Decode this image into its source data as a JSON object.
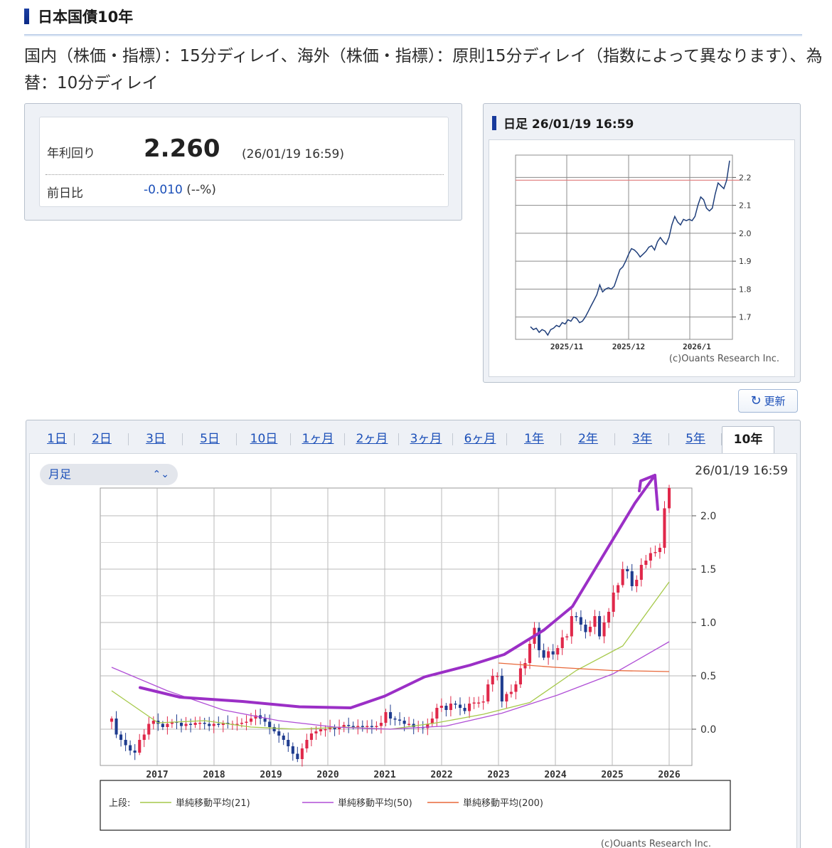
{
  "page": {
    "title": "日本国債10年",
    "notice": "国内（株価・指標）：15分ディレイ、海外（株価・指標）：原則15分ディレイ（指数によって異なります）、為替：10分ディレイ"
  },
  "quote": {
    "yield_label": "年利回り",
    "yield_value": "2.260",
    "timestamp": "(26/01/19 16:59)",
    "change_label": "前日比",
    "change_value": "-0.010",
    "change_pct": " (--%)"
  },
  "mini_chart": {
    "title": "日足 26/01/19 16:59",
    "credit": "(c)Ouants Research Inc.",
    "colors": {
      "line": "#1f3e7a",
      "ref_line": "#e07a7a",
      "grid": "#8c8c8c"
    }
  },
  "refresh": {
    "label": "更新",
    "icon": "refresh-icon"
  },
  "tabs": [
    "1日",
    "2日",
    "3日",
    "5日",
    "10日",
    "1ヶ月",
    "2ヶ月",
    "3ヶ月",
    "6ヶ月",
    "1年",
    "2年",
    "3年",
    "5年",
    "10年"
  ],
  "active_tab": "10年",
  "main_chart": {
    "select_value": "月足",
    "timestamp": "26/01/19 16:59",
    "credit": "(c)Ouants Research Inc.",
    "legend_prefix": "上段:",
    "colors": {
      "up": "#e0284a",
      "down": "#1f3c8f",
      "ma21": "#a6c94a",
      "ma50": "#b04fd6",
      "ma200": "#e8683a",
      "annotation": "#9b2fc6",
      "grid": "#b9b9b9"
    }
  },
  "chart_data": [
    {
      "type": "line",
      "title": "日足 26/01/19 16:59",
      "x_ticks": [
        "2025/11",
        "2025/12",
        "2026/1"
      ],
      "y_ticks": [
        1.7,
        1.8,
        1.9,
        2.0,
        2.1,
        2.2
      ],
      "ylim": [
        1.62,
        2.28
      ],
      "reference_line": 2.19,
      "grid": true,
      "series": [
        {
          "values": [
            1.665,
            1.655,
            1.66,
            1.645,
            1.655,
            1.65,
            1.635,
            1.655,
            1.66,
            1.67,
            1.665,
            1.68,
            1.675,
            1.69,
            1.685,
            1.7,
            1.695,
            1.68,
            1.685,
            1.7,
            1.72,
            1.74,
            1.76,
            1.78,
            1.815,
            1.79,
            1.8,
            1.805,
            1.8,
            1.81,
            1.84,
            1.87,
            1.88,
            1.9,
            1.925,
            1.945,
            1.94,
            1.93,
            1.915,
            1.925,
            1.935,
            1.95,
            1.955,
            1.94,
            1.97,
            1.985,
            1.97,
            1.96,
            1.985,
            2.03,
            2.06,
            2.04,
            2.03,
            2.05,
            2.045,
            2.05,
            2.045,
            2.06,
            2.1,
            2.13,
            2.12,
            2.09,
            2.08,
            2.09,
            2.14,
            2.18,
            2.17,
            2.16,
            2.19,
            2.26
          ]
        }
      ]
    },
    {
      "type": "candlestick",
      "x_ticks": [
        "2017",
        "2018",
        "2019",
        "2020",
        "2021",
        "2022",
        "2023",
        "2024",
        "2025",
        "2026"
      ],
      "y_ticks": [
        0.0,
        0.5,
        1.0,
        1.5,
        2.0
      ],
      "ylim": [
        -0.34,
        2.26
      ],
      "x_range": [
        2016.0,
        2026.4
      ],
      "grid": true,
      "legend_position": "bottom",
      "legend": [
        "単純移動平均(21)",
        "単純移動平均(50)",
        "単純移動平均(200)"
      ],
      "monthly_close": [
        0.1,
        -0.05,
        -0.1,
        -0.15,
        -0.2,
        -0.22,
        -0.1,
        -0.05,
        0.05,
        0.08,
        0.05,
        0.02,
        0.05,
        0.07,
        0.06,
        0.03,
        0.05,
        0.04,
        0.06,
        0.06,
        0.05,
        0.03,
        0.05,
        0.04,
        0.06,
        0.05,
        0.05,
        0.05,
        0.06,
        0.07,
        0.1,
        0.13,
        0.1,
        0.07,
        0.02,
        -0.02,
        -0.06,
        -0.1,
        -0.16,
        -0.23,
        -0.28,
        -0.18,
        -0.1,
        -0.04,
        -0.02,
        0.0,
        0.0,
        0.02,
        0.0,
        0.02,
        0.04,
        0.03,
        0.02,
        0.03,
        0.02,
        0.03,
        0.02,
        0.03,
        0.06,
        0.16,
        0.1,
        0.09,
        0.08,
        0.05,
        0.05,
        0.02,
        0.02,
        0.01,
        0.05,
        0.1,
        0.2,
        0.22,
        0.18,
        0.24,
        0.23,
        0.2,
        0.17,
        0.24,
        0.25,
        0.25,
        0.26,
        0.42,
        0.5,
        0.5,
        0.26,
        0.33,
        0.35,
        0.42,
        0.57,
        0.62,
        0.8,
        0.95,
        0.74,
        0.67,
        0.73,
        0.7,
        0.76,
        0.86,
        0.87,
        1.06,
        1.05,
        0.98,
        0.91,
        0.96,
        1.06,
        0.87,
        1.0,
        1.1,
        1.28,
        1.35,
        1.5,
        1.48,
        1.34,
        1.4,
        1.54,
        1.58,
        1.65,
        1.66,
        1.7,
        2.07,
        2.26
      ],
      "ma21_approx": [
        0.36,
        0.06,
        0.08,
        0.02,
        0.0,
        0.02,
        0.0,
        0.06,
        0.14,
        0.25,
        0.55,
        0.78,
        1.38
      ],
      "ma50_approx": [
        0.58,
        0.36,
        0.18,
        0.08,
        0.02,
        0.0,
        0.03,
        0.15,
        0.32,
        0.52,
        0.82
      ],
      "ma200_approx": [
        0.62,
        0.58,
        0.55,
        0.54
      ]
    }
  ]
}
